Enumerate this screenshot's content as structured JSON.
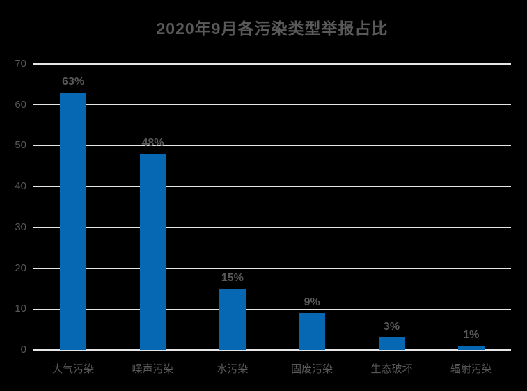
{
  "colors": {
    "background": "#000000",
    "text": "#595959",
    "gridline": "#e6e6e6",
    "bar": "#0667b2"
  },
  "chart_data": {
    "type": "bar",
    "title": "2020年9月各污染类型举报占比",
    "categories": [
      "大气污染",
      "噪声污染",
      "水污染",
      "固废污染",
      "生态破坏",
      "辐射污染"
    ],
    "values": [
      63,
      48,
      15,
      9,
      3,
      1
    ],
    "value_labels": [
      "63%",
      "48%",
      "15%",
      "9%",
      "3%",
      "1%"
    ],
    "xlabel": "",
    "ylabel": "",
    "ylim": [
      0,
      70
    ],
    "yticks": [
      0,
      10,
      20,
      30,
      40,
      50,
      60,
      70
    ],
    "grid": "horizontal",
    "legend": "none",
    "bar_color": "#0667b2",
    "background_color": "#000000",
    "label_color": "#595959",
    "gridline_color": "#e6e6e6"
  }
}
